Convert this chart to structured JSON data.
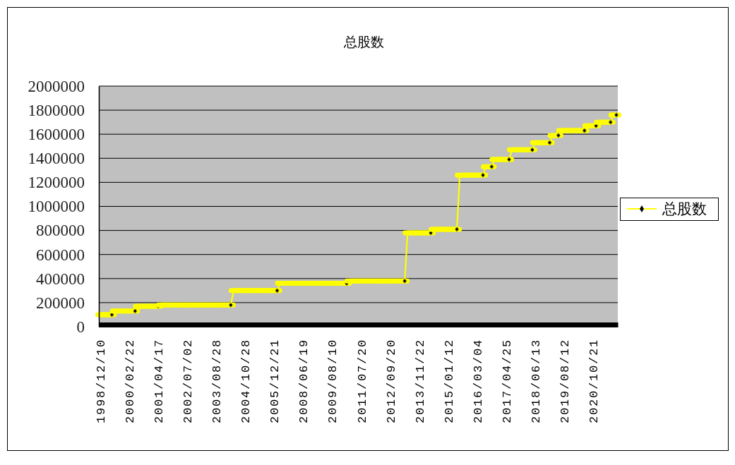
{
  "chart_data": {
    "type": "line",
    "title": "总股数",
    "categories": [
      "1998/12/10",
      null,
      null,
      null,
      null,
      null,
      null,
      null,
      null,
      null,
      "2000/02/22",
      null,
      null,
      null,
      null,
      null,
      null,
      null,
      null,
      null,
      "2001/04/17",
      null,
      null,
      null,
      null,
      null,
      null,
      null,
      null,
      null,
      "2002/07/02",
      null,
      null,
      null,
      null,
      null,
      null,
      null,
      null,
      null,
      "2003/08/28",
      null,
      null,
      null,
      null,
      null,
      null,
      null,
      null,
      null,
      "2004/10/28",
      null,
      null,
      null,
      null,
      null,
      null,
      null,
      null,
      null,
      "2005/12/21",
      null,
      null,
      null,
      null,
      null,
      null,
      null,
      null,
      null,
      "2008/06/19",
      null,
      null,
      null,
      null,
      null,
      null,
      null,
      null,
      null,
      "2009/08/10",
      null,
      null,
      null,
      null,
      null,
      null,
      null,
      null,
      null,
      "2011/07/20",
      null,
      null,
      null,
      null,
      null,
      null,
      null,
      null,
      null,
      "2012/09/20",
      null,
      null,
      null,
      null,
      null,
      null,
      null,
      null,
      null,
      "2013/11/22",
      null,
      null,
      null,
      null,
      null,
      null,
      null,
      null,
      null,
      "2015/01/12",
      null,
      null,
      null,
      null,
      null,
      null,
      null,
      null,
      null,
      "2016/03/04",
      null,
      null,
      null,
      null,
      null,
      null,
      null,
      null,
      null,
      "2017/04/25",
      null,
      null,
      null,
      null,
      null,
      null,
      null,
      null,
      null,
      "2018/06/13",
      null,
      null,
      null,
      null,
      null,
      null,
      null,
      null,
      null,
      "2019/08/12",
      null,
      null,
      null,
      null,
      null,
      null,
      null,
      null,
      null,
      "2020/10/21",
      null,
      null,
      null,
      null,
      null,
      null,
      null,
      null
    ],
    "ylim": [
      0,
      2000000
    ],
    "yticks": [
      0,
      200000,
      400000,
      600000,
      800000,
      1000000,
      1200000,
      1400000,
      1600000,
      1800000,
      2000000
    ],
    "grid": "y",
    "legend": "right",
    "marker": "diamond",
    "series": [
      {
        "name": "总股数",
        "color": "#ffff00",
        "values": [
          100000,
          100000,
          100000,
          100000,
          100000,
          130000,
          130000,
          130000,
          130000,
          130000,
          130000,
          130000,
          130000,
          170000,
          170000,
          170000,
          170000,
          170000,
          170000,
          170000,
          170000,
          180000,
          180000,
          180000,
          180000,
          180000,
          180000,
          180000,
          180000,
          180000,
          180000,
          180000,
          180000,
          180000,
          180000,
          180000,
          180000,
          180000,
          180000,
          180000,
          180000,
          180000,
          180000,
          180000,
          180000,
          180000,
          300000,
          300000,
          300000,
          300000,
          300000,
          300000,
          300000,
          300000,
          300000,
          300000,
          300000,
          300000,
          300000,
          300000,
          300000,
          300000,
          360000,
          360000,
          360000,
          360000,
          360000,
          360000,
          360000,
          360000,
          360000,
          360000,
          360000,
          360000,
          360000,
          360000,
          360000,
          360000,
          360000,
          360000,
          360000,
          360000,
          360000,
          360000,
          360000,
          360000,
          380000,
          380000,
          380000,
          380000,
          380000,
          380000,
          380000,
          380000,
          380000,
          380000,
          380000,
          380000,
          380000,
          380000,
          380000,
          380000,
          380000,
          380000,
          380000,
          380000,
          780000,
          780000,
          780000,
          780000,
          780000,
          780000,
          780000,
          780000,
          780000,
          810000,
          810000,
          810000,
          810000,
          810000,
          810000,
          810000,
          810000,
          810000,
          1260000,
          1260000,
          1260000,
          1260000,
          1260000,
          1260000,
          1260000,
          1260000,
          1260000,
          1330000,
          1330000,
          1330000,
          1390000,
          1390000,
          1390000,
          1390000,
          1390000,
          1390000,
          1470000,
          1470000,
          1470000,
          1470000,
          1470000,
          1470000,
          1470000,
          1470000,
          1530000,
          1530000,
          1530000,
          1530000,
          1530000,
          1530000,
          1590000,
          1590000,
          1590000,
          1630000,
          1630000,
          1630000,
          1630000,
          1630000,
          1630000,
          1630000,
          1630000,
          1630000,
          1670000,
          1670000,
          1670000,
          1670000,
          1700000,
          1700000,
          1700000,
          1700000,
          1700000,
          1760000,
          1760000
        ]
      }
    ]
  }
}
